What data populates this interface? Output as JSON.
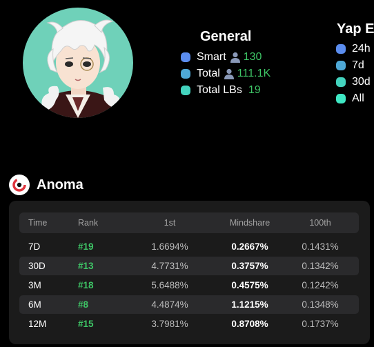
{
  "general": {
    "title": "General",
    "items": [
      {
        "label": "Smart",
        "person_icon": true,
        "value": "130",
        "color": "#5b8def"
      },
      {
        "label": "Total",
        "person_icon": true,
        "value": "111.1K",
        "color": "#4ea8d6"
      },
      {
        "label": "Total LBs",
        "person_icon": false,
        "value": "19",
        "color": "#43d3be"
      }
    ]
  },
  "yap": {
    "title": "Yap E",
    "items": [
      {
        "label": "24h",
        "color": "#5b8def"
      },
      {
        "label": "7d",
        "color": "#4ea8d6"
      },
      {
        "label": "30d",
        "color": "#43d3be"
      },
      {
        "label": "All",
        "color": "#3fe8c4"
      }
    ]
  },
  "project": {
    "name": "Anoma",
    "logo_icon": "anoma-logo-icon"
  },
  "table": {
    "headers": {
      "time": "Time",
      "rank": "Rank",
      "first": "1st",
      "mindshare": "Mindshare",
      "hundredth": "100th"
    },
    "rows": [
      {
        "time": "7D",
        "rank": "#19",
        "first": "1.6694%",
        "mindshare": "0.2667%",
        "hundredth": "0.1431%"
      },
      {
        "time": "30D",
        "rank": "#13",
        "first": "4.7731%",
        "mindshare": "0.3757%",
        "hundredth": "0.1342%"
      },
      {
        "time": "3M",
        "rank": "#18",
        "first": "5.6488%",
        "mindshare": "0.4575%",
        "hundredth": "0.1242%"
      },
      {
        "time": "6M",
        "rank": "#8",
        "first": "4.4874%",
        "mindshare": "1.1215%",
        "hundredth": "0.1348%"
      },
      {
        "time": "12M",
        "rank": "#15",
        "first": "3.7981%",
        "mindshare": "0.8708%",
        "hundredth": "0.1737%"
      }
    ]
  },
  "colors": {
    "accent_green": "#3ec566",
    "card_bg": "#1b1b1b",
    "row_alt_bg": "#2a2a2c",
    "avatar_bg": "#6fd1b9"
  }
}
